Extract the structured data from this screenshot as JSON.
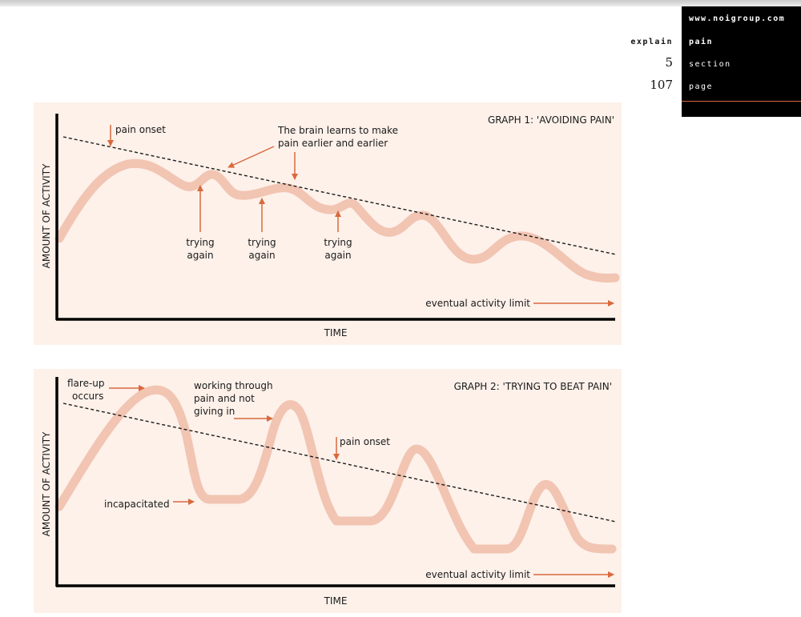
{
  "header": {
    "url": "www.noigroup.com",
    "explain_label": "explain",
    "section_value": "pain",
    "section_number": "5",
    "section_label": "section",
    "page_number": "107",
    "page_label": "page"
  },
  "colors": {
    "panel_bg": "#fdf1ea",
    "curve": "#f2c4b2",
    "arrow": "#d9693e",
    "header_bg": "#000000",
    "accent_rule": "#d9693e"
  },
  "graph1": {
    "title": "GRAPH 1: 'AVOIDING PAIN'",
    "ylabel": "AMOUNT OF ACTIVITY",
    "xlabel": "TIME",
    "pain_onset": "pain onset",
    "brain_line1": "The brain learns to make",
    "brain_line2": "pain earlier and earlier",
    "trying_line1": "trying",
    "trying_line2": "again",
    "limit": "eventual activity limit"
  },
  "graph2": {
    "title": "GRAPH 2: 'TRYING TO BEAT PAIN'",
    "ylabel": "AMOUNT OF ACTIVITY",
    "xlabel": "TIME",
    "flare_line1": "flare-up",
    "flare_line2": "occurs",
    "working_line1": "working through",
    "working_line2": "pain and not",
    "working_line3": "giving in",
    "pain_onset": "pain onset",
    "incapacitated": "incapacitated",
    "limit": "eventual activity limit"
  }
}
